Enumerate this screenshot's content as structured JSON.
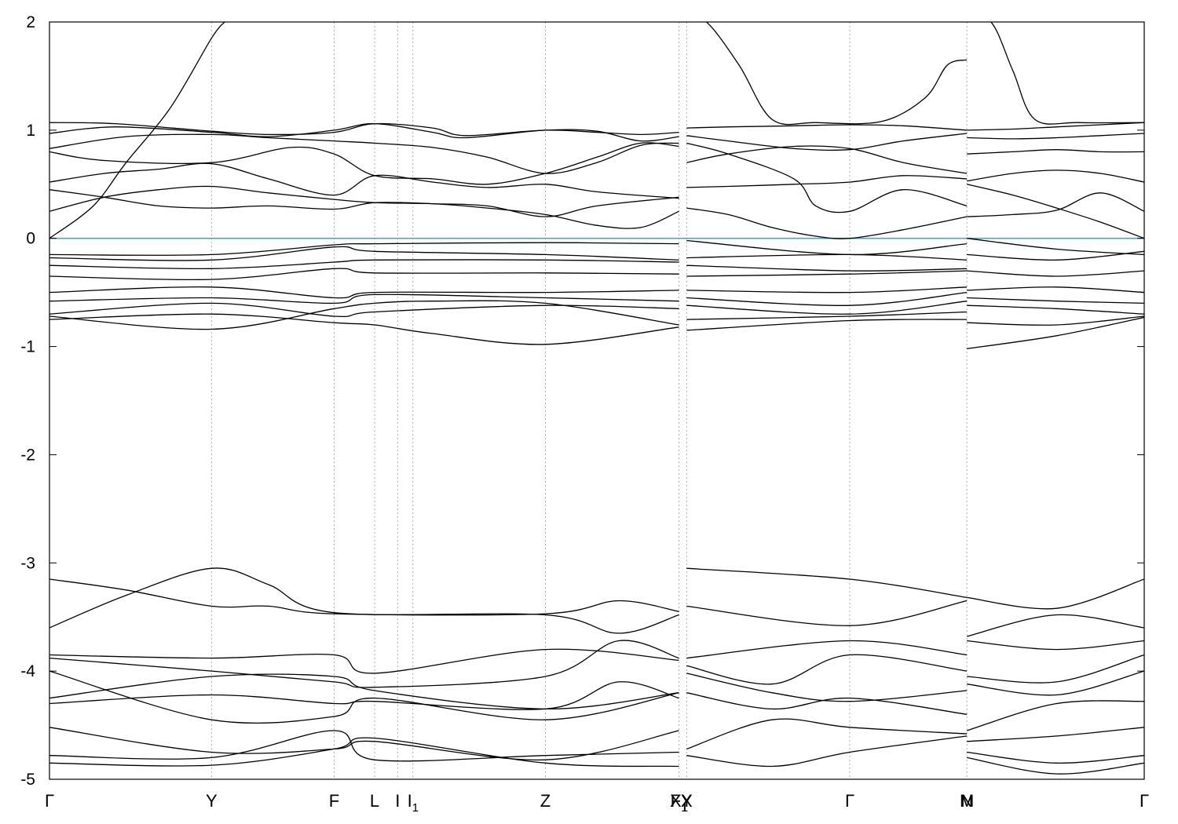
{
  "chart_data": {
    "type": "line",
    "title": "",
    "xlabel": "",
    "ylabel": "",
    "ylim": [
      -5,
      2
    ],
    "yticks": [
      -5,
      -4,
      -3,
      -2,
      -1,
      0,
      1,
      2
    ],
    "grid": "dashed vertical lines at high-symmetry points",
    "legend": "none",
    "fermi_level": {
      "value": 0,
      "color": "#4aa7c0"
    },
    "kpoints": [
      {
        "name": "Γ",
        "sub": "",
        "x": 0.0
      },
      {
        "name": "Y",
        "sub": "",
        "x": 0.148
      },
      {
        "name": "F",
        "sub": "",
        "x": 0.26
      },
      {
        "name": "L",
        "sub": "",
        "x": 0.297
      },
      {
        "name": "I",
        "sub": "",
        "x": 0.318
      },
      {
        "name": "I",
        "sub": "1",
        "x": 0.332
      },
      {
        "name": "Z",
        "sub": "",
        "x": 0.453
      },
      {
        "name": "F",
        "sub": "1",
        "x": 0.575
      },
      {
        "name": "X",
        "sub": "1",
        "x": 0.575
      },
      {
        "name": "Y",
        "sub": "",
        "x": 0.582
      },
      {
        "name": "X",
        "sub": "",
        "x": 0.582
      },
      {
        "name": "Γ",
        "sub": "",
        "x": 0.731
      },
      {
        "name": "N",
        "sub": "",
        "x": 0.838
      },
      {
        "name": "M",
        "sub": "",
        "x": 0.838
      },
      {
        "name": "Γ",
        "sub": "",
        "x": 1.0
      }
    ],
    "segments": [
      [
        0.0,
        0.575
      ],
      [
        0.582,
        0.838
      ],
      [
        0.838,
        1.0
      ]
    ],
    "series": [
      {
        "x": [
          0,
          0.04,
          0.07,
          0.11,
          0.148,
          0.16
        ],
        "y": [
          0.0,
          0.3,
          0.7,
          1.2,
          1.85,
          2.0
        ]
      },
      {
        "x": [
          0.582,
          0.6,
          0.63,
          0.66,
          0.7,
          0.76,
          0.8,
          0.82,
          0.838
        ],
        "y": [
          2.0,
          2.0,
          1.6,
          1.1,
          1.07,
          1.08,
          1.3,
          1.6,
          1.65
        ]
      },
      {
        "x": [
          0.838,
          0.86,
          0.88,
          0.9,
          0.94,
          1.0
        ],
        "y": [
          2.0,
          2.0,
          1.55,
          1.1,
          1.07,
          1.07
        ]
      },
      {
        "x": [
          0,
          0.06,
          0.148,
          0.2,
          0.26,
          0.297,
          0.35,
          0.38,
          0.453,
          0.5,
          0.54,
          0.575
        ],
        "y": [
          1.07,
          1.06,
          0.99,
          0.96,
          0.98,
          1.06,
          1.02,
          0.95,
          1.0,
          0.98,
          0.96,
          0.98
        ]
      },
      {
        "x": [
          0,
          0.06,
          0.148,
          0.2,
          0.26,
          0.297,
          0.35,
          0.38,
          0.453,
          0.5,
          0.54,
          0.575
        ],
        "y": [
          0.97,
          1.03,
          0.98,
          0.94,
          1.0,
          1.06,
          0.98,
          0.93,
          1.0,
          0.99,
          0.9,
          0.94
        ]
      },
      {
        "x": [
          0,
          0.07,
          0.148,
          0.2,
          0.26,
          0.297,
          0.35,
          0.4,
          0.453,
          0.5,
          0.54,
          0.575
        ],
        "y": [
          0.83,
          0.94,
          0.96,
          0.93,
          0.9,
          0.88,
          0.84,
          0.75,
          0.6,
          0.7,
          0.86,
          0.88
        ]
      },
      {
        "x": [
          0,
          0.05,
          0.148,
          0.22,
          0.26,
          0.297,
          0.35,
          0.4,
          0.453,
          0.5,
          0.54,
          0.575
        ],
        "y": [
          0.8,
          0.72,
          0.7,
          0.84,
          0.78,
          0.58,
          0.55,
          0.5,
          0.6,
          0.75,
          0.88,
          0.85
        ]
      },
      {
        "x": [
          0,
          0.05,
          0.1,
          0.148,
          0.2,
          0.26,
          0.297,
          0.35,
          0.4,
          0.453,
          0.5,
          0.575
        ],
        "y": [
          0.52,
          0.6,
          0.64,
          0.69,
          0.55,
          0.4,
          0.58,
          0.52,
          0.47,
          0.5,
          0.43,
          0.37
        ]
      },
      {
        "x": [
          0,
          0.05,
          0.1,
          0.148,
          0.2,
          0.26,
          0.297,
          0.35,
          0.4,
          0.453,
          0.5,
          0.575
        ],
        "y": [
          0.25,
          0.38,
          0.45,
          0.48,
          0.42,
          0.36,
          0.33,
          0.32,
          0.3,
          0.2,
          0.3,
          0.38
        ]
      },
      {
        "x": [
          0,
          0.05,
          0.1,
          0.148,
          0.2,
          0.26,
          0.297,
          0.35,
          0.4,
          0.453,
          0.5,
          0.54,
          0.575
        ],
        "y": [
          0.45,
          0.38,
          0.3,
          0.28,
          0.3,
          0.27,
          0.33,
          0.32,
          0.28,
          0.22,
          0.12,
          0.1,
          0.25
        ]
      },
      {
        "x": [
          0.582,
          0.62,
          0.68,
          0.731,
          0.78,
          0.838
        ],
        "y": [
          1.02,
          1.03,
          1.04,
          1.05,
          1.04,
          1.0
        ]
      },
      {
        "x": [
          0.582,
          0.62,
          0.68,
          0.731,
          0.78,
          0.838
        ],
        "y": [
          0.95,
          0.9,
          0.83,
          0.82,
          0.9,
          0.97
        ]
      },
      {
        "x": [
          0.582,
          0.62,
          0.68,
          0.731,
          0.78,
          0.838
        ],
        "y": [
          0.7,
          0.78,
          0.85,
          0.83,
          0.7,
          0.6
        ]
      },
      {
        "x": [
          0.582,
          0.62,
          0.68,
          0.731,
          0.78,
          0.838
        ],
        "y": [
          0.47,
          0.48,
          0.5,
          0.52,
          0.58,
          0.55
        ]
      },
      {
        "x": [
          0.582,
          0.62,
          0.66,
          0.7,
          0.731,
          0.78,
          0.838
        ],
        "y": [
          0.28,
          0.22,
          0.1,
          0.02,
          0.0,
          0.08,
          0.2
        ]
      },
      {
        "x": [
          0.582,
          0.62,
          0.68,
          0.7,
          0.731,
          0.78,
          0.838
        ],
        "y": [
          0.88,
          0.78,
          0.55,
          0.3,
          0.25,
          0.45,
          0.3
        ]
      },
      {
        "x": [
          0.838,
          0.88,
          0.92,
          0.96,
          1.0
        ],
        "y": [
          1.0,
          1.01,
          1.03,
          1.05,
          1.07
        ]
      },
      {
        "x": [
          0.838,
          0.88,
          0.92,
          0.96,
          1.0
        ],
        "y": [
          0.93,
          0.92,
          0.93,
          0.95,
          0.97
        ]
      },
      {
        "x": [
          0.838,
          0.88,
          0.92,
          0.96,
          1.0
        ],
        "y": [
          0.78,
          0.8,
          0.82,
          0.8,
          0.8
        ]
      },
      {
        "x": [
          0.838,
          0.88,
          0.92,
          0.96,
          1.0
        ],
        "y": [
          0.53,
          0.6,
          0.63,
          0.6,
          0.52
        ]
      },
      {
        "x": [
          0.838,
          0.88,
          0.92,
          0.96,
          1.0
        ],
        "y": [
          0.2,
          0.22,
          0.26,
          0.42,
          0.25
        ]
      },
      {
        "x": [
          0.838,
          0.88,
          0.92,
          0.96,
          1.0
        ],
        "y": [
          0.5,
          0.4,
          0.28,
          0.15,
          0.0
        ]
      },
      {
        "x": [
          0,
          0.148,
          0.26,
          0.297,
          0.453,
          0.575
        ],
        "y": [
          -0.15,
          -0.15,
          -0.06,
          -0.05,
          -0.04,
          -0.05
        ]
      },
      {
        "x": [
          0,
          0.148,
          0.26,
          0.297,
          0.453,
          0.575
        ],
        "y": [
          -0.18,
          -0.2,
          -0.08,
          -0.12,
          -0.15,
          -0.2
        ]
      },
      {
        "x": [
          0,
          0.148,
          0.26,
          0.297,
          0.453,
          0.575
        ],
        "y": [
          -0.25,
          -0.28,
          -0.22,
          -0.2,
          -0.2,
          -0.22
        ]
      },
      {
        "x": [
          0,
          0.148,
          0.26,
          0.297,
          0.453,
          0.575
        ],
        "y": [
          -0.35,
          -0.38,
          -0.28,
          -0.32,
          -0.32,
          -0.33
        ]
      },
      {
        "x": [
          0,
          0.148,
          0.26,
          0.297,
          0.453,
          0.575
        ],
        "y": [
          -0.5,
          -0.45,
          -0.55,
          -0.5,
          -0.5,
          -0.48
        ]
      },
      {
        "x": [
          0,
          0.148,
          0.26,
          0.297,
          0.453,
          0.575
        ],
        "y": [
          -0.58,
          -0.55,
          -0.6,
          -0.52,
          -0.55,
          -0.58
        ]
      },
      {
        "x": [
          0,
          0.148,
          0.26,
          0.297,
          0.453,
          0.575
        ],
        "y": [
          -0.7,
          -0.6,
          -0.72,
          -0.68,
          -0.62,
          -0.65
        ]
      },
      {
        "x": [
          0,
          0.148,
          0.26,
          0.297,
          0.35,
          0.453,
          0.575
        ],
        "y": [
          -0.72,
          -0.84,
          -0.65,
          -0.6,
          -0.58,
          -0.6,
          -0.8
        ]
      },
      {
        "x": [
          0,
          0.148,
          0.26,
          0.297,
          0.35,
          0.453,
          0.575
        ],
        "y": [
          -0.75,
          -0.7,
          -0.78,
          -0.8,
          -0.88,
          -0.98,
          -0.82
        ]
      },
      {
        "x": [
          0.582,
          0.731,
          0.838
        ],
        "y": [
          -0.02,
          -0.15,
          -0.05
        ]
      },
      {
        "x": [
          0.582,
          0.731,
          0.838
        ],
        "y": [
          -0.18,
          -0.15,
          -0.2
        ]
      },
      {
        "x": [
          0.582,
          0.731,
          0.838
        ],
        "y": [
          -0.25,
          -0.3,
          -0.28
        ]
      },
      {
        "x": [
          0.582,
          0.731,
          0.838
        ],
        "y": [
          -0.35,
          -0.33,
          -0.3
        ]
      },
      {
        "x": [
          0.582,
          0.731,
          0.838
        ],
        "y": [
          -0.48,
          -0.5,
          -0.45
        ]
      },
      {
        "x": [
          0.582,
          0.731,
          0.838
        ],
        "y": [
          -0.55,
          -0.62,
          -0.5
        ]
      },
      {
        "x": [
          0.582,
          0.731,
          0.838
        ],
        "y": [
          -0.62,
          -0.7,
          -0.58
        ]
      },
      {
        "x": [
          0.582,
          0.731,
          0.838
        ],
        "y": [
          -0.75,
          -0.72,
          -0.68
        ]
      },
      {
        "x": [
          0.582,
          0.731,
          0.838
        ],
        "y": [
          -0.85,
          -0.76,
          -0.75
        ]
      },
      {
        "x": [
          0.838,
          0.92,
          1.0
        ],
        "y": [
          0.0,
          -0.1,
          -0.15
        ]
      },
      {
        "x": [
          0.838,
          0.92,
          1.0
        ],
        "y": [
          -0.15,
          -0.2,
          -0.12
        ]
      },
      {
        "x": [
          0.838,
          0.92,
          1.0
        ],
        "y": [
          -0.3,
          -0.35,
          -0.3
        ]
      },
      {
        "x": [
          0.838,
          0.92,
          1.0
        ],
        "y": [
          -0.48,
          -0.45,
          -0.5
        ]
      },
      {
        "x": [
          0.838,
          0.92,
          1.0
        ],
        "y": [
          -0.55,
          -0.58,
          -0.6
        ]
      },
      {
        "x": [
          0.838,
          0.92,
          1.0
        ],
        "y": [
          -0.62,
          -0.65,
          -0.7
        ]
      },
      {
        "x": [
          0.838,
          0.92,
          1.0
        ],
        "y": [
          -0.78,
          -0.8,
          -0.72
        ]
      },
      {
        "x": [
          0.838,
          0.92,
          1.0
        ],
        "y": [
          -1.02,
          -0.9,
          -0.73
        ]
      },
      {
        "x": [
          0,
          0.07,
          0.148,
          0.2,
          0.26,
          0.453,
          0.52,
          0.575
        ],
        "y": [
          -3.15,
          -3.25,
          -3.4,
          -3.4,
          -3.47,
          -3.47,
          -3.35,
          -3.45
        ]
      },
      {
        "x": [
          0,
          0.07,
          0.148,
          0.2,
          0.26,
          0.453,
          0.52,
          0.575
        ],
        "y": [
          -3.6,
          -3.3,
          -3.05,
          -3.2,
          -3.46,
          -3.48,
          -3.65,
          -3.48
        ]
      },
      {
        "x": [
          0,
          0.148,
          0.26,
          0.297,
          0.453,
          0.575
        ],
        "y": [
          -3.85,
          -3.88,
          -3.85,
          -4.02,
          -3.8,
          -3.9
        ]
      },
      {
        "x": [
          0,
          0.148,
          0.26,
          0.297,
          0.453,
          0.52,
          0.575
        ],
        "y": [
          -3.88,
          -4.0,
          -4.1,
          -4.15,
          -4.05,
          -3.72,
          -3.88
        ]
      },
      {
        "x": [
          0,
          0.148,
          0.26,
          0.297,
          0.453,
          0.575
        ],
        "y": [
          -4.25,
          -4.05,
          -4.05,
          -4.18,
          -4.35,
          -4.2
        ]
      },
      {
        "x": [
          0,
          0.148,
          0.26,
          0.297,
          0.453,
          0.52,
          0.575
        ],
        "y": [
          -4.3,
          -4.22,
          -4.3,
          -4.28,
          -4.35,
          -4.1,
          -4.25
        ]
      },
      {
        "x": [
          0,
          0.148,
          0.26,
          0.297,
          0.453,
          0.575
        ],
        "y": [
          -4.0,
          -4.45,
          -4.42,
          -4.25,
          -4.45,
          -4.2
        ]
      },
      {
        "x": [
          0,
          0.148,
          0.26,
          0.297,
          0.453,
          0.575
        ],
        "y": [
          -4.52,
          -4.75,
          -4.72,
          -4.65,
          -4.82,
          -4.55
        ]
      },
      {
        "x": [
          0,
          0.148,
          0.26,
          0.297,
          0.453,
          0.575
        ],
        "y": [
          -4.78,
          -4.8,
          -4.55,
          -4.82,
          -4.78,
          -4.75
        ]
      },
      {
        "x": [
          0,
          0.148,
          0.26,
          0.297,
          0.453,
          0.575
        ],
        "y": [
          -4.85,
          -4.87,
          -4.72,
          -4.62,
          -4.85,
          -4.88
        ]
      },
      {
        "x": [
          0.582,
          0.731,
          0.838
        ],
        "y": [
          -3.05,
          -3.15,
          -3.32
        ]
      },
      {
        "x": [
          0.582,
          0.731,
          0.838
        ],
        "y": [
          -3.4,
          -3.58,
          -3.35
        ]
      },
      {
        "x": [
          0.582,
          0.731,
          0.838
        ],
        "y": [
          -3.88,
          -3.72,
          -3.85
        ]
      },
      {
        "x": [
          0.582,
          0.66,
          0.731,
          0.838
        ],
        "y": [
          -3.95,
          -4.12,
          -3.85,
          -4.0
        ]
      },
      {
        "x": [
          0.582,
          0.66,
          0.731,
          0.838
        ],
        "y": [
          -4.02,
          -4.2,
          -4.28,
          -4.18
        ]
      },
      {
        "x": [
          0.582,
          0.66,
          0.731,
          0.838
        ],
        "y": [
          -4.2,
          -4.35,
          -4.25,
          -4.4
        ]
      },
      {
        "x": [
          0.582,
          0.66,
          0.731,
          0.838
        ],
        "y": [
          -4.72,
          -4.45,
          -4.52,
          -4.58
        ]
      },
      {
        "x": [
          0.582,
          0.66,
          0.731,
          0.838
        ],
        "y": [
          -4.78,
          -4.88,
          -4.75,
          -4.6
        ]
      },
      {
        "x": [
          0.838,
          0.92,
          1.0
        ],
        "y": [
          -3.32,
          -3.42,
          -3.15
        ]
      },
      {
        "x": [
          0.838,
          0.92,
          1.0
        ],
        "y": [
          -3.68,
          -3.48,
          -3.6
        ]
      },
      {
        "x": [
          0.838,
          0.92,
          1.0
        ],
        "y": [
          -3.72,
          -3.8,
          -3.72
        ]
      },
      {
        "x": [
          0.838,
          0.92,
          1.0
        ],
        "y": [
          -4.05,
          -4.1,
          -3.85
        ]
      },
      {
        "x": [
          0.838,
          0.92,
          1.0
        ],
        "y": [
          -4.12,
          -4.22,
          -4.0
        ]
      },
      {
        "x": [
          0.838,
          0.92,
          1.0
        ],
        "y": [
          -4.55,
          -4.3,
          -4.28
        ]
      },
      {
        "x": [
          0.838,
          0.92,
          1.0
        ],
        "y": [
          -4.65,
          -4.6,
          -4.52
        ]
      },
      {
        "x": [
          0.838,
          0.92,
          1.0
        ],
        "y": [
          -4.75,
          -4.85,
          -4.78
        ]
      },
      {
        "x": [
          0.838,
          0.92,
          1.0
        ],
        "y": [
          -4.8,
          -4.95,
          -4.85
        ]
      }
    ]
  }
}
